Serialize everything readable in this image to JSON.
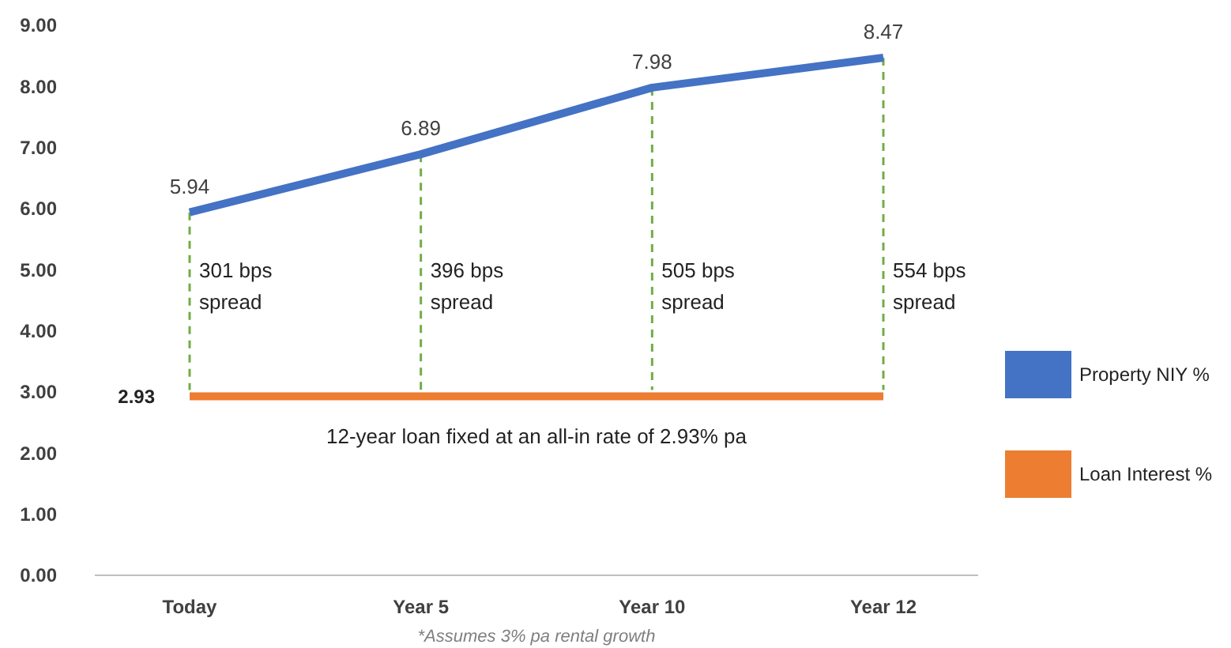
{
  "chart_data": {
    "type": "line",
    "categories": [
      "Today",
      "Year 5",
      "Year 10",
      "Year 12"
    ],
    "series": [
      {
        "name": "Property NIY %",
        "color": "#4472c4",
        "values": [
          5.94,
          6.89,
          7.98,
          8.47
        ],
        "value_labels": [
          "5.94",
          "6.89",
          "7.98",
          "8.47"
        ]
      },
      {
        "name": "Loan Interest %",
        "color": "#ed7d31",
        "values": [
          2.93,
          2.93,
          2.93,
          2.93
        ],
        "value_labels": [
          "2.93",
          null,
          null,
          null
        ]
      }
    ],
    "ylim": [
      0,
      9
    ],
    "yticks": [
      {
        "value": 0,
        "label": "0.00"
      },
      {
        "value": 1,
        "label": "1.00"
      },
      {
        "value": 2,
        "label": "2.00"
      },
      {
        "value": 3,
        "label": "3.00"
      },
      {
        "value": 4,
        "label": "4.00"
      },
      {
        "value": 5,
        "label": "5.00"
      },
      {
        "value": 6,
        "label": "6.00"
      },
      {
        "value": 7,
        "label": "7.00"
      },
      {
        "value": 8,
        "label": "8.00"
      },
      {
        "value": 9,
        "label": "9.00"
      }
    ],
    "legend": "right",
    "grid": false,
    "marker": "none",
    "line_style": "solid",
    "annotations": [
      "301 bps spread",
      "396 bps spread",
      "505 bps spread",
      "554 bps spread",
      "12-year loan fixed at an all-in rate of 2.93% pa",
      "*Assumes 3% pa rental growth"
    ]
  }
}
